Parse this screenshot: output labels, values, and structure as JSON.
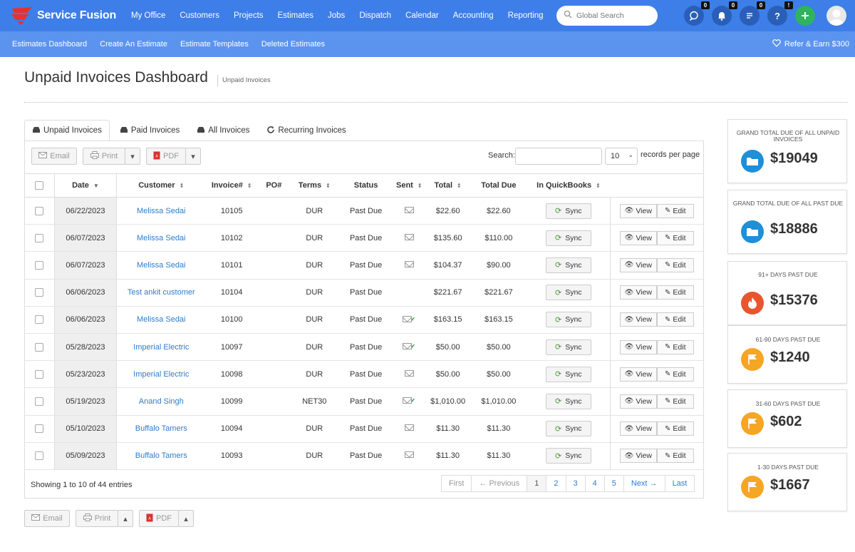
{
  "brand": {
    "name": "Service Fusion"
  },
  "nav": [
    "My Office",
    "Customers",
    "Projects",
    "Estimates",
    "Jobs",
    "Dispatch",
    "Calendar",
    "Accounting",
    "Reporting"
  ],
  "search": {
    "placeholder": "Global Search"
  },
  "badges": {
    "chat": "0",
    "notifications": "0",
    "tasks": "0",
    "help": "!"
  },
  "subnav": [
    "Estimates Dashboard",
    "Create An Estimate",
    "Estimate Templates",
    "Deleted Estimates"
  ],
  "refer": "Refer & Earn $300",
  "page": {
    "title": "Unpaid Invoices Dashboard",
    "crumb": "Unpaid Invoices"
  },
  "tabs": [
    "Unpaid Invoices",
    "Paid Invoices",
    "All Invoices",
    "Recurring Invoices"
  ],
  "toolbar": {
    "email": "Email",
    "print": "Print",
    "pdf": "PDF",
    "search_label": "Search:",
    "per_page_value": "10",
    "per_page_label": "records per page"
  },
  "table": {
    "headers": [
      "Date",
      "Customer",
      "Invoice#",
      "PO#",
      "Terms",
      "Status",
      "Sent",
      "Total",
      "Total Due",
      "In QuickBooks"
    ],
    "sync_label": "Sync",
    "view_label": "View",
    "edit_label": "Edit",
    "rows": [
      {
        "date": "06/22/2023",
        "customer": "Melissa Sedai",
        "invoice": "10105",
        "po": "",
        "terms": "DUR",
        "status": "Past Due",
        "sent": "mail",
        "total": "$22.60",
        "due": "$22.60"
      },
      {
        "date": "06/07/2023",
        "customer": "Melissa Sedai",
        "invoice": "10102",
        "po": "",
        "terms": "DUR",
        "status": "Past Due",
        "sent": "mail",
        "total": "$135.60",
        "due": "$110.00"
      },
      {
        "date": "06/07/2023",
        "customer": "Melissa Sedai",
        "invoice": "10101",
        "po": "",
        "terms": "DUR",
        "status": "Past Due",
        "sent": "mail",
        "total": "$104.37",
        "due": "$90.00"
      },
      {
        "date": "06/06/2023",
        "customer": "Test ankit customer",
        "invoice": "10104",
        "po": "",
        "terms": "DUR",
        "status": "Past Due",
        "sent": "",
        "total": "$221.67",
        "due": "$221.67"
      },
      {
        "date": "06/06/2023",
        "customer": "Melissa Sedai",
        "invoice": "10100",
        "po": "",
        "terms": "DUR",
        "status": "Past Due",
        "sent": "mail-check",
        "total": "$163.15",
        "due": "$163.15"
      },
      {
        "date": "05/28/2023",
        "customer": "Imperial Electric",
        "invoice": "10097",
        "po": "",
        "terms": "DUR",
        "status": "Past Due",
        "sent": "mail-check",
        "total": "$50.00",
        "due": "$50.00"
      },
      {
        "date": "05/23/2023",
        "customer": "Imperial Electric",
        "invoice": "10098",
        "po": "",
        "terms": "DUR",
        "status": "Past Due",
        "sent": "mail",
        "total": "$50.00",
        "due": "$50.00"
      },
      {
        "date": "05/19/2023",
        "customer": "Anand Singh",
        "invoice": "10099",
        "po": "",
        "terms": "NET30",
        "status": "Past Due",
        "sent": "mail-check",
        "total": "$1,010.00",
        "due": "$1,010.00"
      },
      {
        "date": "05/10/2023",
        "customer": "Buffalo Tamers",
        "invoice": "10094",
        "po": "",
        "terms": "DUR",
        "status": "Past Due",
        "sent": "mail",
        "total": "$11.30",
        "due": "$11.30"
      },
      {
        "date": "05/09/2023",
        "customer": "Buffalo Tamers",
        "invoice": "10093",
        "po": "",
        "terms": "DUR",
        "status": "Past Due",
        "sent": "mail",
        "total": "$11.30",
        "due": "$11.30"
      }
    ]
  },
  "showing": "Showing 1 to 10 of 44 entries",
  "pager": [
    "First",
    "← Previous",
    "1",
    "2",
    "3",
    "4",
    "5",
    "Next →",
    "Last"
  ],
  "cards": [
    {
      "label": "GRAND TOTAL DUE OF ALL UNPAID INVOICES",
      "value": "$19049",
      "color": "#1e8fd8",
      "icon": "folder-icon"
    },
    {
      "label": "GRAND TOTAL DUE OF ALL PAST DUE",
      "value": "$18886",
      "color": "#1e8fd8",
      "icon": "folder-icon"
    },
    {
      "label": "91+ DAYS PAST DUE",
      "value": "$15376",
      "color": "#e8552e",
      "icon": "fire-icon"
    },
    {
      "label": "61-90 DAYS PAST DUE",
      "value": "$1240",
      "color": "#f5a623",
      "icon": "flag-icon"
    },
    {
      "label": "31-60 DAYS PAST DUE",
      "value": "$602",
      "color": "#f5a623",
      "icon": "flag-icon"
    },
    {
      "label": "1-30 DAYS PAST DUE",
      "value": "$1667",
      "color": "#f5a623",
      "icon": "flag-icon"
    }
  ]
}
